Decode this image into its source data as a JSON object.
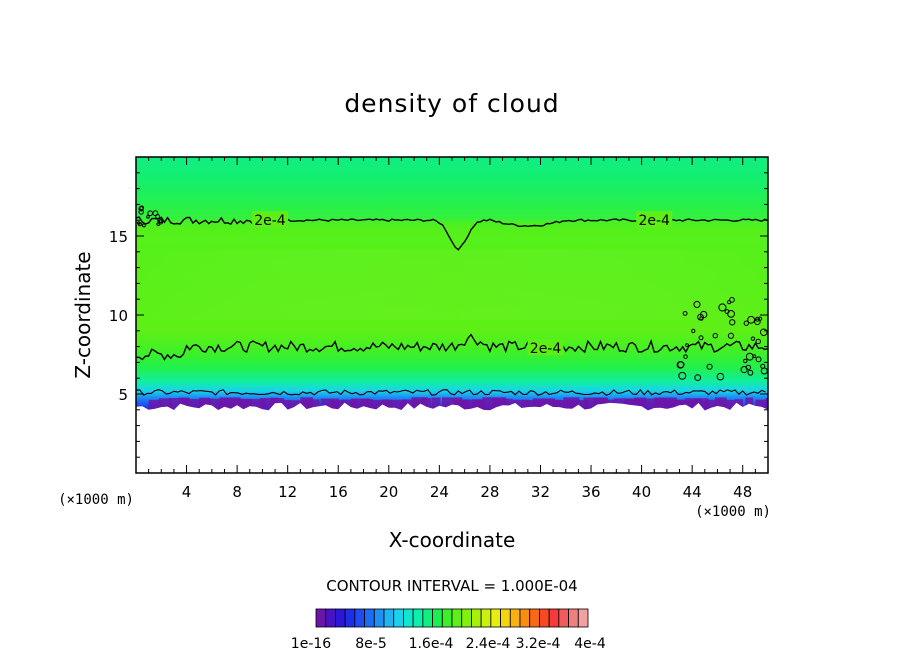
{
  "chart_data": {
    "type": "heatmap",
    "title": "density of cloud",
    "xlabel": "X-coordinate",
    "ylabel": "Z-coordinate",
    "x_unit_left": "(×1000 m)",
    "x_unit_right": "(×1000 m)",
    "xlim": [
      0,
      50
    ],
    "ylim": [
      0,
      20
    ],
    "x_ticks": [
      4,
      8,
      12,
      16,
      20,
      24,
      28,
      32,
      36,
      40,
      44,
      48
    ],
    "y_ticks": [
      5,
      10,
      15
    ],
    "contour_interval_text": "CONTOUR INTERVAL = 1.000E-04",
    "contour_labels": [
      {
        "text": "2e-4",
        "x": 10.6,
        "z": 16.0
      },
      {
        "text": "2e-4",
        "x": 41.0,
        "z": 16.0
      },
      {
        "text": "2e-4",
        "x": 32.4,
        "z": 7.9
      }
    ],
    "field": {
      "cloud_base_z": 4.2,
      "cloud_top_z": 20,
      "upper_contour_2e-4_z": 16.0,
      "lower_contour_2e-4_z": 8.0,
      "dip_x": 25.5,
      "dip_min_z": 14.2
    },
    "colorbar": {
      "colors": [
        "#6c15a8",
        "#4a12c2",
        "#2d17d6",
        "#1f2ee6",
        "#1e4cf2",
        "#1a6cf2",
        "#1e90f2",
        "#1fb4f2",
        "#19d3ea",
        "#0fe6cf",
        "#0bf0aa",
        "#10f07d",
        "#1cf050",
        "#3df02a",
        "#5ef016",
        "#80f00c",
        "#a6f00c",
        "#cbf00f",
        "#e8ec10",
        "#f5d410",
        "#f7b20f",
        "#f78e12",
        "#f76a14",
        "#f74a22",
        "#f43a3a",
        "#f25b5b",
        "#f07f7f",
        "#f4a0a0"
      ],
      "labels": [
        "1e-16",
        "8e-5",
        "1.6e-4",
        "2.4e-4",
        "3.2e-4",
        "4e-4"
      ]
    }
  }
}
